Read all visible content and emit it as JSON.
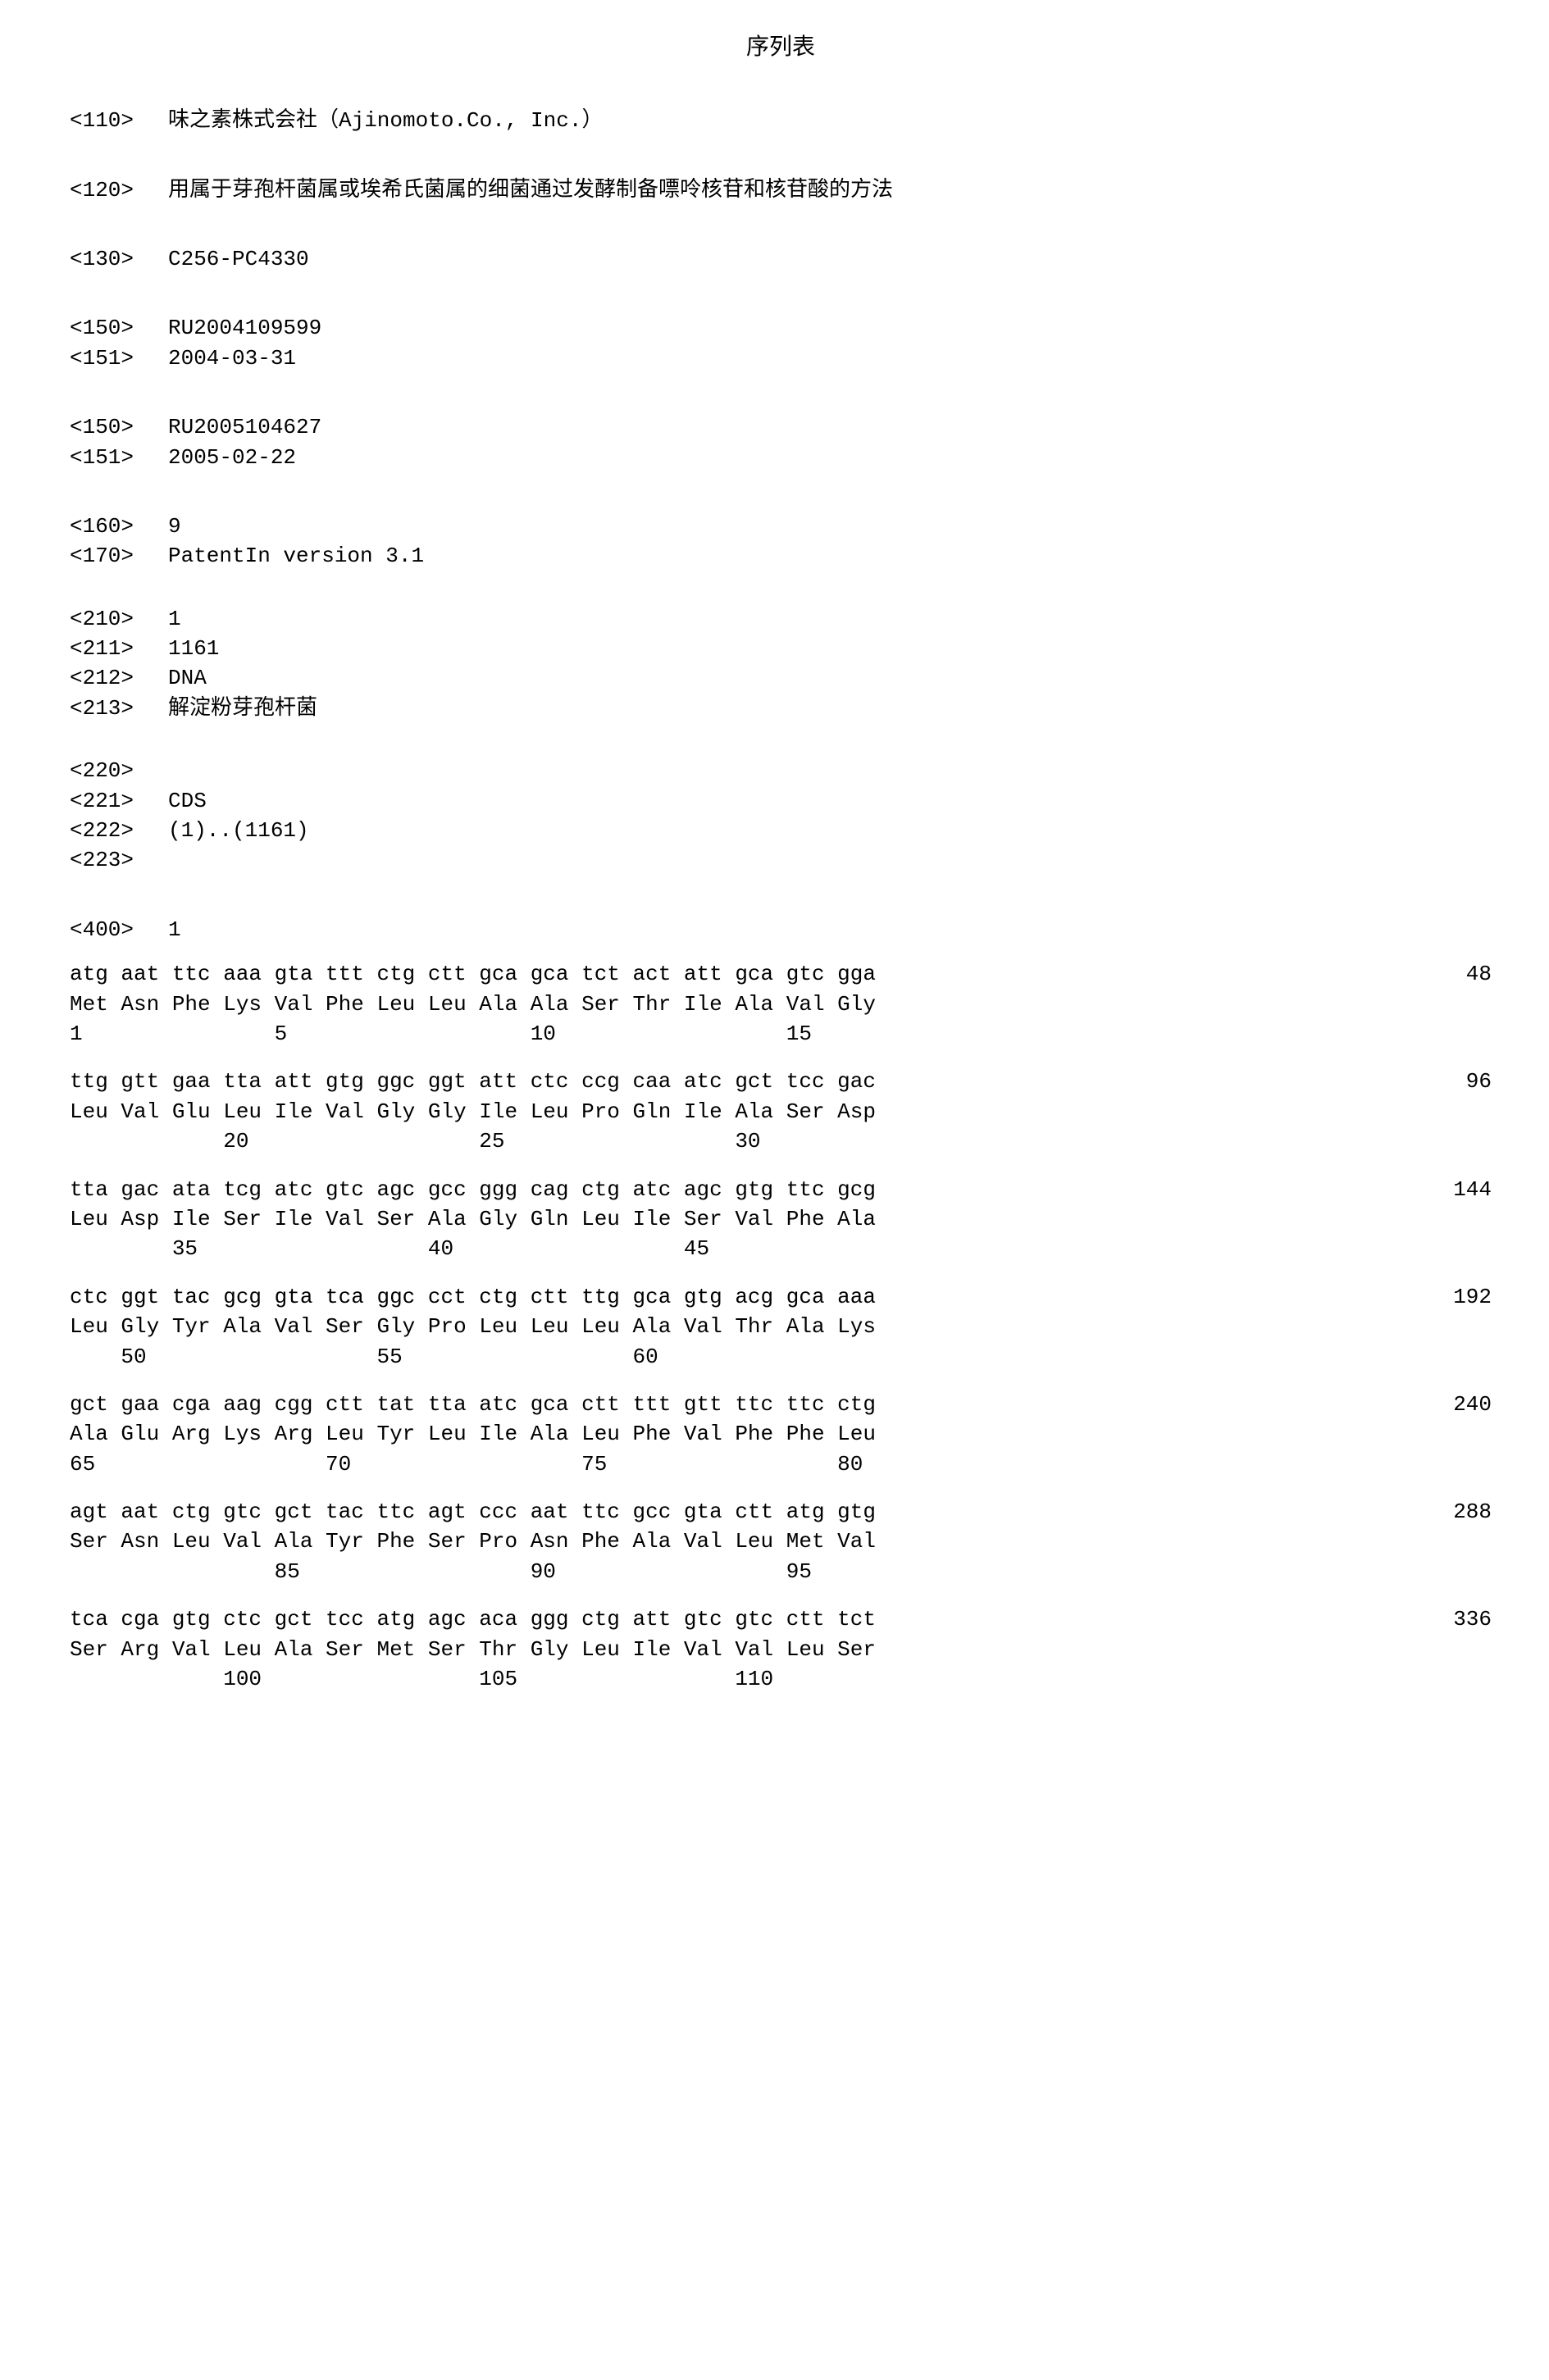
{
  "title": "序列表",
  "header_110_tag": "<110>",
  "header_110_val": "味之素株式会社（Ajinomoto.Co., Inc.）",
  "header_120_tag": "<120>",
  "header_120_val": "用属于芽孢杆菌属或埃希氏菌属的细菌通过发酵制备嘌呤核苷和核苷酸的方法",
  "header_130_tag": "<130>",
  "header_130_val": "C256-PC4330",
  "prio1_150_tag": "<150>",
  "prio1_150_val": "RU2004109599",
  "prio1_151_tag": "<151>",
  "prio1_151_val": "2004-03-31",
  "prio2_150_tag": "<150>",
  "prio2_150_val": "RU2005104627",
  "prio2_151_tag": "<151>",
  "prio2_151_val": "2005-02-22",
  "header_160_tag": "<160>",
  "header_160_val": "9",
  "header_170_tag": "<170>",
  "header_170_val": "PatentIn version 3.1",
  "seq_210_tag": "<210>",
  "seq_210_val": "1",
  "seq_211_tag": "<211>",
  "seq_211_val": "1161",
  "seq_212_tag": "<212>",
  "seq_212_val": "DNA",
  "seq_213_tag": "<213>",
  "seq_213_val": "解淀粉芽孢杆菌",
  "feat_220_tag": "<220>",
  "feat_221_tag": "<221>",
  "feat_221_val": "CDS",
  "feat_222_tag": "<222>",
  "feat_222_val": "(1)..(1161)",
  "feat_223_tag": "<223>",
  "seq_400_tag": "<400>",
  "seq_400_val": "1",
  "rows": [
    {
      "dna": "atg aat ttc aaa gta ttt ctg ctt gca gca tct act att gca gtc gga",
      "aa": "Met Asn Phe Lys Val Phe Leu Leu Ala Ala Ser Thr Ile Ala Val Gly",
      "pos": "1               5                   10                  15",
      "num": "48"
    },
    {
      "dna": "ttg gtt gaa tta att gtg ggc ggt att ctc ccg caa atc gct tcc gac",
      "aa": "Leu Val Glu Leu Ile Val Gly Gly Ile Leu Pro Gln Ile Ala Ser Asp",
      "pos": "            20                  25                  30",
      "num": "96"
    },
    {
      "dna": "tta gac ata tcg atc gtc agc gcc ggg cag ctg atc agc gtg ttc gcg",
      "aa": "Leu Asp Ile Ser Ile Val Ser Ala Gly Gln Leu Ile Ser Val Phe Ala",
      "pos": "        35                  40                  45",
      "num": "144"
    },
    {
      "dna": "ctc ggt tac gcg gta tca ggc cct ctg ctt ttg gca gtg acg gca aaa",
      "aa": "Leu Gly Tyr Ala Val Ser Gly Pro Leu Leu Leu Ala Val Thr Ala Lys",
      "pos": "    50                  55                  60",
      "num": "192"
    },
    {
      "dna": "gct gaa cga aag cgg ctt tat tta atc gca ctt ttt gtt ttc ttc ctg",
      "aa": "Ala Glu Arg Lys Arg Leu Tyr Leu Ile Ala Leu Phe Val Phe Phe Leu",
      "pos": "65                  70                  75                  80",
      "num": "240"
    },
    {
      "dna": "agt aat ctg gtc gct tac ttc agt ccc aat ttc gcc gta ctt atg gtg",
      "aa": "Ser Asn Leu Val Ala Tyr Phe Ser Pro Asn Phe Ala Val Leu Met Val",
      "pos": "                85                  90                  95",
      "num": "288"
    },
    {
      "dna": "tca cga gtg ctc gct tcc atg agc aca ggg ctg att gtc gtc ctt tct",
      "aa": "Ser Arg Val Leu Ala Ser Met Ser Thr Gly Leu Ile Val Val Leu Ser",
      "pos": "            100                 105                 110",
      "num": "336"
    }
  ]
}
